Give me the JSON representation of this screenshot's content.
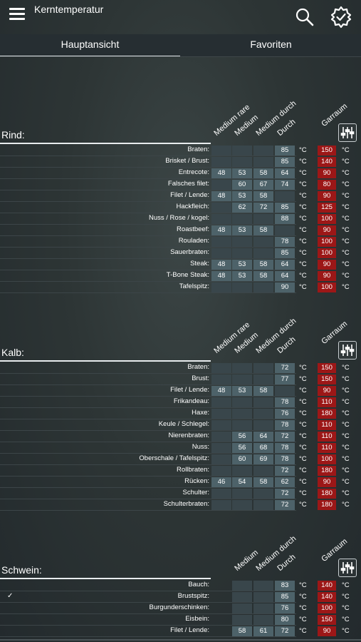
{
  "app": {
    "title": "Kerntemperatur",
    "icons": {
      "menu": "menu-icon",
      "search": "search-icon",
      "settings": "gear-check-icon"
    }
  },
  "tabs": [
    {
      "label": "Hauptansicht",
      "active": true
    },
    {
      "label": "Favoriten",
      "active": false
    }
  ],
  "unit": "°C",
  "colors": {
    "garraum_bg": "#9c1717",
    "value_bg": "#4d6269",
    "empty_bg": "#39464b"
  },
  "sections": [
    {
      "title": "Rind:",
      "columns": [
        "Medium rare",
        "Medium",
        "Medium durch",
        "Durch"
      ],
      "garraum_label": "Garraum",
      "rows": [
        {
          "label": "Braten:",
          "values": [
            "",
            "",
            "",
            "85"
          ],
          "garraum": "150"
        },
        {
          "label": "Brisket / Brust:",
          "values": [
            "",
            "",
            "",
            "85"
          ],
          "garraum": "140"
        },
        {
          "label": "Entrecote:",
          "values": [
            "48",
            "53",
            "58",
            "64"
          ],
          "garraum": "90"
        },
        {
          "label": "Falsches filet:",
          "values": [
            "",
            "60",
            "67",
            "74"
          ],
          "garraum": "80"
        },
        {
          "label": "Filet / Lende:",
          "values": [
            "48",
            "53",
            "58",
            ""
          ],
          "garraum": "90"
        },
        {
          "label": "Hackfleich:",
          "values": [
            "",
            "62",
            "72",
            "85"
          ],
          "garraum": "125"
        },
        {
          "label": "Nuss / Rose / kogel:",
          "values": [
            "",
            "",
            "",
            "88"
          ],
          "garraum": "100"
        },
        {
          "label": "Roastbeef:",
          "values": [
            "48",
            "53",
            "58",
            ""
          ],
          "garraum": "90"
        },
        {
          "label": "Rouladen:",
          "values": [
            "",
            "",
            "",
            "78"
          ],
          "garraum": "100"
        },
        {
          "label": "Sauerbraten:",
          "values": [
            "",
            "",
            "",
            "85"
          ],
          "garraum": "100"
        },
        {
          "label": "Steak:",
          "values": [
            "48",
            "53",
            "58",
            "64"
          ],
          "garraum": "90"
        },
        {
          "label": "T-Bone Steak:",
          "values": [
            "48",
            "53",
            "58",
            "64"
          ],
          "garraum": "90"
        },
        {
          "label": "Tafelspitz:",
          "values": [
            "",
            "",
            "",
            "90"
          ],
          "garraum": "100"
        }
      ]
    },
    {
      "title": "Kalb:",
      "columns": [
        "Medium rare",
        "Medium",
        "Medium durch",
        "Durch"
      ],
      "garraum_label": "Garraum",
      "rows": [
        {
          "label": "Braten:",
          "values": [
            "",
            "",
            "",
            "72"
          ],
          "garraum": "150"
        },
        {
          "label": "Brust:",
          "values": [
            "",
            "",
            "",
            "77"
          ],
          "garraum": "150"
        },
        {
          "label": "Filet / Lende:",
          "values": [
            "48",
            "53",
            "58",
            ""
          ],
          "garraum": "90"
        },
        {
          "label": "Frikandeau:",
          "values": [
            "",
            "",
            "",
            "78"
          ],
          "garraum": "110"
        },
        {
          "label": "Haxe:",
          "values": [
            "",
            "",
            "",
            "76"
          ],
          "garraum": "180"
        },
        {
          "label": "Keule / Schlegel:",
          "values": [
            "",
            "",
            "",
            "78"
          ],
          "garraum": "110"
        },
        {
          "label": "Nierenbraten:",
          "values": [
            "",
            "56",
            "64",
            "72"
          ],
          "garraum": "110"
        },
        {
          "label": "Nuss:",
          "values": [
            "",
            "56",
            "68",
            "78"
          ],
          "garraum": "110"
        },
        {
          "label": "Oberschale / Tafelspitz:",
          "values": [
            "",
            "60",
            "69",
            "78"
          ],
          "garraum": "100"
        },
        {
          "label": "Rollbraten:",
          "values": [
            "",
            "",
            "",
            "72"
          ],
          "garraum": "180"
        },
        {
          "label": "Rücken:",
          "values": [
            "46",
            "54",
            "58",
            "62"
          ],
          "garraum": "90"
        },
        {
          "label": "Schulter:",
          "values": [
            "",
            "",
            "",
            "72"
          ],
          "garraum": "180"
        },
        {
          "label": "Schulterbraten:",
          "values": [
            "",
            "",
            "",
            "72"
          ],
          "garraum": "180"
        }
      ]
    },
    {
      "title": "Schwein:",
      "columns": [
        "Medium",
        "Medium durch",
        "Durch"
      ],
      "garraum_label": "Garraum",
      "rows": [
        {
          "label": "Bauch:",
          "values": [
            "",
            "",
            "83"
          ],
          "garraum": "140"
        },
        {
          "label": "Brustspitz:",
          "values": [
            "",
            "",
            "85"
          ],
          "garraum": "140",
          "checked": true
        },
        {
          "label": "Burgunderschinken:",
          "values": [
            "",
            "",
            "76"
          ],
          "garraum": "100"
        },
        {
          "label": "Eisbein:",
          "values": [
            "",
            "",
            "80"
          ],
          "garraum": "150"
        },
        {
          "label": "Filet / Lende:",
          "values": [
            "58",
            "61",
            "72"
          ],
          "garraum": "90"
        }
      ]
    }
  ]
}
